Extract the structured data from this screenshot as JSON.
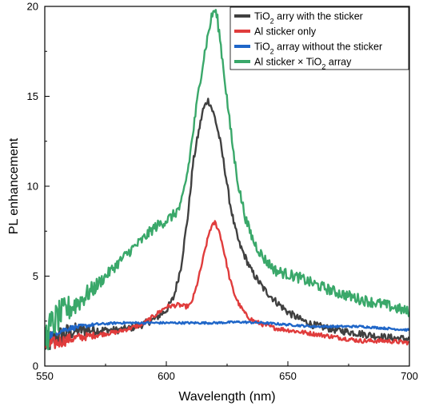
{
  "chart_data": {
    "type": "line",
    "title": "",
    "xlabel": "Wavelength (nm)",
    "ylabel": "PL enhancement",
    "xlim": [
      550,
      700
    ],
    "ylim": [
      0,
      20
    ],
    "xticks": [
      550,
      600,
      650,
      700
    ],
    "yticks": [
      0,
      5,
      10,
      15,
      20
    ],
    "grid": false,
    "legend_position": "top-right",
    "series": [
      {
        "name": "TiO2 arry with the sticker",
        "legend_parts": [
          "TiO",
          "2",
          " arry with the sticker"
        ],
        "color": "#404040",
        "noise": 0.2,
        "x": [
          550,
          555,
          560,
          565,
          570,
          575,
          580,
          585,
          590,
          595,
          600,
          603,
          606,
          609,
          611,
          613,
          615,
          617,
          618,
          620,
          622,
          624,
          626,
          628,
          630,
          635,
          640,
          645,
          650,
          655,
          660,
          670,
          680,
          690,
          700
        ],
        "y": [
          1.2,
          1.6,
          1.9,
          2.0,
          2.0,
          2.0,
          2.0,
          2.1,
          2.3,
          2.6,
          3.1,
          3.8,
          5.5,
          8.5,
          11.3,
          12.8,
          14.2,
          14.8,
          14.6,
          13.8,
          12.6,
          11.0,
          9.2,
          7.8,
          6.8,
          5.3,
          4.3,
          3.6,
          3.0,
          2.6,
          2.3,
          2.0,
          1.8,
          1.6,
          1.5
        ]
      },
      {
        "name": "Al sticker only",
        "legend_parts": [
          "Al sticker only"
        ],
        "color": "#e03c3c",
        "noise": 0.12,
        "x": [
          550,
          555,
          560,
          565,
          570,
          580,
          590,
          595,
          600,
          605,
          608,
          610,
          612,
          614,
          616,
          618,
          620,
          622,
          624,
          626,
          628,
          630,
          633,
          636,
          640,
          645,
          650,
          660,
          670,
          680,
          690,
          700
        ],
        "y": [
          1.1,
          1.3,
          1.5,
          1.6,
          1.7,
          1.9,
          2.3,
          2.8,
          3.3,
          3.4,
          3.3,
          3.4,
          4.2,
          5.3,
          6.5,
          7.6,
          8.0,
          7.4,
          6.2,
          4.9,
          4.0,
          3.4,
          2.8,
          2.5,
          2.3,
          2.1,
          2.0,
          1.8,
          1.6,
          1.4,
          1.4,
          1.3
        ]
      },
      {
        "name": "TiO2 array without the sticker",
        "legend_parts": [
          "TiO",
          "2",
          " array without the sticker"
        ],
        "color": "#1f66c8",
        "noise": 0.06,
        "x": [
          550,
          555,
          560,
          565,
          570,
          580,
          590,
          600,
          610,
          620,
          630,
          640,
          650,
          660,
          670,
          680,
          690,
          700
        ],
        "y": [
          1.6,
          1.9,
          2.1,
          2.2,
          2.3,
          2.4,
          2.4,
          2.4,
          2.4,
          2.4,
          2.45,
          2.4,
          2.3,
          2.2,
          2.2,
          2.2,
          2.1,
          2.0
        ]
      },
      {
        "name": "Al sticker × TiO2 array",
        "legend_parts": [
          "Al sticker × TiO",
          "2",
          " array"
        ],
        "color": "#3aa86a",
        "noise": 0.3,
        "x": [
          550,
          553,
          556,
          560,
          565,
          570,
          575,
          580,
          585,
          590,
          595,
          600,
          603,
          606,
          609,
          612,
          614,
          616,
          618,
          619,
          620,
          621,
          622,
          624,
          626,
          628,
          630,
          633,
          636,
          640,
          645,
          650,
          655,
          660,
          670,
          680,
          690,
          700
        ],
        "y": [
          1.5,
          2.3,
          2.8,
          3.2,
          3.7,
          4.3,
          5.0,
          5.7,
          6.4,
          7.0,
          7.7,
          8.1,
          8.4,
          8.9,
          11.0,
          14.0,
          16.0,
          17.6,
          19.0,
          19.6,
          19.8,
          19.3,
          18.3,
          16.0,
          13.6,
          11.5,
          9.8,
          8.0,
          6.9,
          6.0,
          5.3,
          5.1,
          4.9,
          4.6,
          4.1,
          3.7,
          3.4,
          3.0
        ]
      }
    ]
  }
}
